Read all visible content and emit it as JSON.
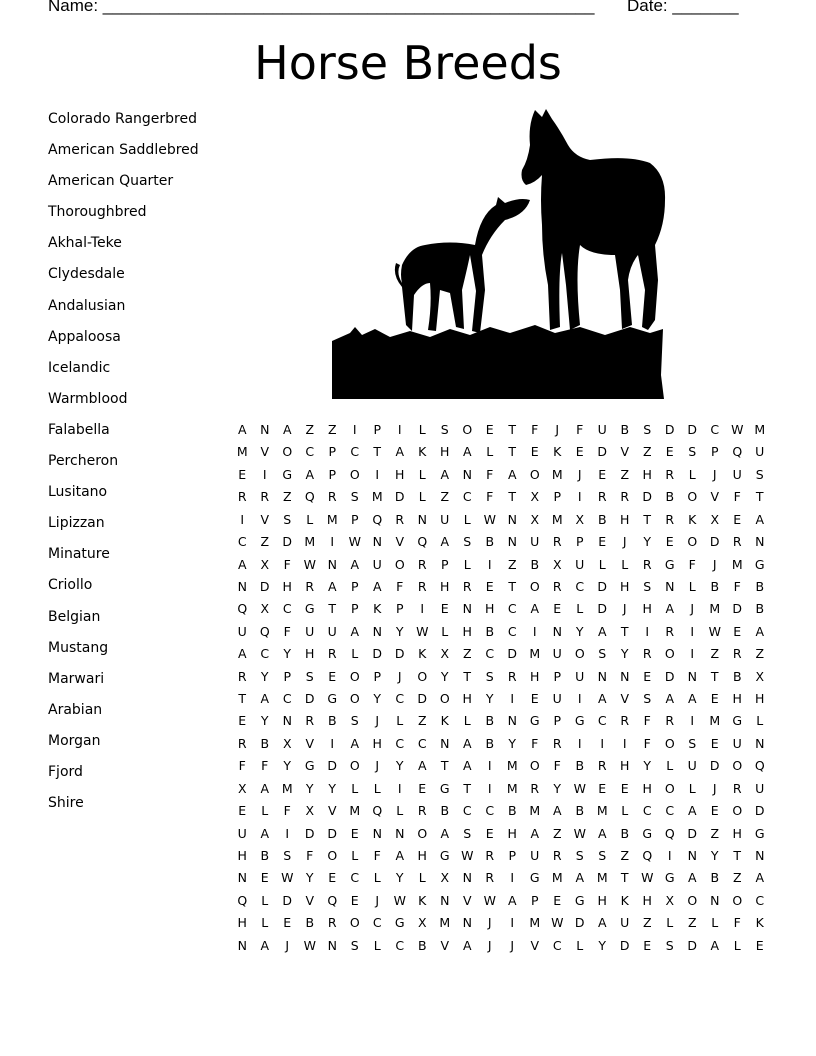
{
  "header": {
    "name_label": "Name: ____________________________________________________",
    "date_label": "Date: _______"
  },
  "title": "Horse Breeds",
  "image": {
    "icon": "horse-and-foal-silhouette-icon"
  },
  "word_list": [
    "Colorado Rangerbred",
    "American Saddlebred",
    "American Quarter",
    "Thoroughbred",
    "Akhal-Teke",
    "Clydesdale",
    "Andalusian",
    "Appaloosa",
    "Icelandic",
    "Warmblood",
    "Falabella",
    "Percheron",
    "Lusitano",
    "Lipizzan",
    "Minature",
    "Criollo",
    "Belgian",
    "Mustang",
    "Marwari",
    "Arabian",
    "Morgan",
    "Fjord",
    "Shire"
  ],
  "grid": [
    "ANAZZIPILSOETFJFUBSDDCWM",
    "MVOCPCTAKHALTEKEDVZESPQU",
    "EIGAPOIHLANFAOMJEZHRLJUS",
    "RRZQRSMDLZCFTXPIRRDBOVFT",
    "IVSLMPQRNULWNXMXBHTRKXEA",
    "CZDMIWNVQASBNURPEJYEODRN",
    "AXFWNAUORPLIZBXULLRGFJMG",
    "NDHRAPAFRHRETORCDHSNLBFB",
    "QXCGTPKPIENHCAELDJHAJMDB",
    "UQFUUANYWLHBCINYATIRIWEA",
    "ACYHRLDDKXZCDMUOSYROIZRZ",
    "RYPSEOPJOYTSRHPUNNEDNTBX",
    "TACDGOYCDOHYIEUIAVSAAEHH",
    "EYNRBSJLZKLBNGPGCRFRIMGL",
    "RBXVIAHCCNABYFRIIIFOSEUN",
    "FFYGDOJYATAIMOFBRHYLUDOQ",
    "XAMYYLLIEGTIMRYWEEHOLJRU",
    "ELFXVMQLRBCCBMABMLCCAEOD",
    "UAIDDENNOASEHAZWABGQDZHG",
    "HBSFOLFAHGWRPURSSZQINYTN",
    "NEWYECLYLXNRIGMAMTWGABZA",
    "QLDVQEJWKNVWAPEGHKHXONOC",
    "HLEBROCGXMNJIMWDAUZLZLFK",
    "NAJWNSLCBVAJJVCLYDESDALE"
  ]
}
